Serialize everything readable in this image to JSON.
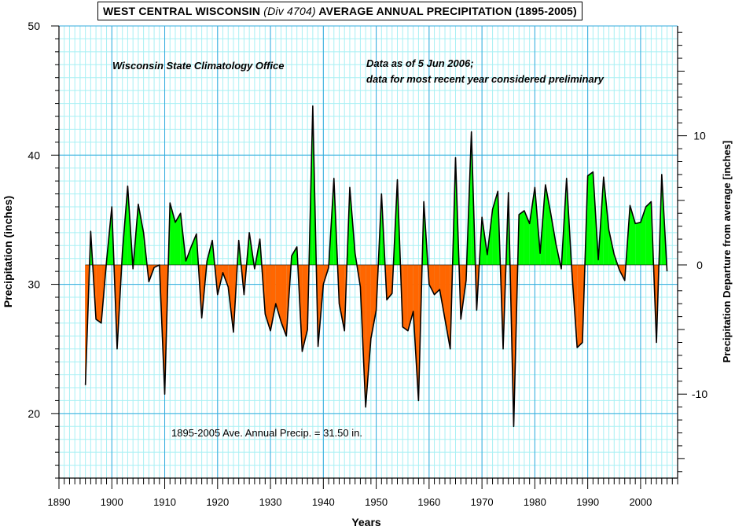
{
  "chart_data": {
    "type": "area",
    "title_parts": [
      "WEST CENTRAL WISCONSIN ",
      "(Div 4704)",
      " AVERAGE ANNUAL PRECIPITATION (1895-2005)"
    ],
    "xlabel": "Years",
    "ylabel": "Precipitation (inches)",
    "y2label": "Precipitation Departure from average [inches]",
    "source_note": "Wisconsin State Climatology Office",
    "data_note_line1": "Data as of 5 Jun 2006;",
    "data_note_line2": "data for most recent year considered preliminary",
    "average_note": "1895-2005 Ave. Annual Precip. = 31.50 in.",
    "average": 31.5,
    "xlim": [
      1890,
      2007
    ],
    "ylim": [
      15,
      50
    ],
    "x_ticks": [
      1890,
      1900,
      1910,
      1920,
      1930,
      1940,
      1950,
      1960,
      1970,
      1980,
      1990,
      2000
    ],
    "y_ticks": [
      20,
      30,
      40,
      50
    ],
    "y2_ticks": [
      -10,
      0,
      10
    ],
    "grid": true,
    "colors": {
      "above": "#00ff00",
      "below": "#ff6600",
      "grid_major": "#33aadd",
      "grid_minor": "#a8f0f4",
      "line": "#000000"
    },
    "x": [
      1895,
      1896,
      1897,
      1898,
      1899,
      1900,
      1901,
      1902,
      1903,
      1904,
      1905,
      1906,
      1907,
      1908,
      1909,
      1910,
      1911,
      1912,
      1913,
      1914,
      1915,
      1916,
      1917,
      1918,
      1919,
      1920,
      1921,
      1922,
      1923,
      1924,
      1925,
      1926,
      1927,
      1928,
      1929,
      1930,
      1931,
      1932,
      1933,
      1934,
      1935,
      1936,
      1937,
      1938,
      1939,
      1940,
      1941,
      1942,
      1943,
      1944,
      1945,
      1946,
      1947,
      1948,
      1949,
      1950,
      1951,
      1952,
      1953,
      1954,
      1955,
      1956,
      1957,
      1958,
      1959,
      1960,
      1961,
      1962,
      1963,
      1964,
      1965,
      1966,
      1967,
      1968,
      1969,
      1970,
      1971,
      1972,
      1973,
      1974,
      1975,
      1976,
      1977,
      1978,
      1979,
      1980,
      1981,
      1982,
      1983,
      1984,
      1985,
      1986,
      1987,
      1988,
      1989,
      1990,
      1991,
      1992,
      1993,
      1994,
      1995,
      1996,
      1997,
      1998,
      1999,
      2000,
      2001,
      2002,
      2003,
      2004,
      2005
    ],
    "values": [
      22.2,
      34.1,
      27.3,
      27.0,
      31.8,
      36.0,
      25.0,
      32.5,
      37.6,
      31.2,
      36.2,
      34.0,
      30.2,
      31.3,
      31.5,
      21.5,
      36.3,
      34.8,
      35.5,
      31.8,
      32.9,
      33.9,
      27.4,
      31.8,
      33.4,
      29.2,
      30.9,
      29.8,
      26.3,
      33.4,
      29.2,
      34.0,
      31.2,
      33.5,
      27.7,
      26.4,
      28.5,
      27.1,
      26.0,
      32.2,
      32.9,
      24.8,
      26.5,
      43.8,
      25.2,
      30.0,
      31.3,
      38.2,
      28.5,
      26.4,
      37.5,
      32.4,
      29.8,
      20.5,
      25.8,
      28.0,
      37.0,
      28.8,
      29.3,
      38.1,
      26.7,
      26.4,
      27.9,
      21.0,
      36.4,
      30.0,
      29.2,
      29.6,
      27.3,
      25.0,
      39.8,
      27.3,
      30.3,
      41.8,
      28.0,
      35.2,
      32.3,
      35.8,
      37.2,
      25.0,
      37.1,
      19.0,
      35.4,
      35.7,
      34.7,
      37.5,
      32.4,
      37.7,
      35.5,
      33.1,
      31.2,
      38.2,
      31.0,
      25.1,
      25.5,
      38.4,
      38.7,
      31.9,
      38.3,
      34.2,
      32.3,
      31.1,
      30.3,
      36.1,
      34.7,
      34.8,
      36.0,
      36.4,
      25.5,
      38.5,
      31.0
    ]
  }
}
